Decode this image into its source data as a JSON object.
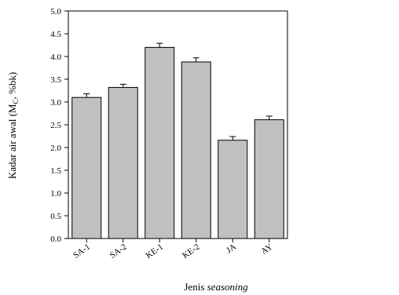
{
  "chart_data": {
    "type": "bar",
    "categories": [
      "SA-1",
      "SA-2",
      "KE-1",
      "KE-2",
      "JA",
      "AY"
    ],
    "values": [
      3.1,
      3.32,
      4.2,
      3.88,
      2.16,
      2.61
    ],
    "errors": [
      0.08,
      0.07,
      0.09,
      0.09,
      0.08,
      0.08
    ],
    "xlabel_main": "Jenis ",
    "xlabel_italic": "seasoning",
    "ylabel_main": "Kadar air awal (M",
    "ylabel_sub": "C",
    "ylabel_end": ", %bk)",
    "ylim": [
      0.0,
      5.0
    ],
    "yticks": [
      "0.0",
      "0.5",
      "1.0",
      "1.5",
      "2.0",
      "2.5",
      "3.0",
      "3.5",
      "4.0",
      "4.5",
      "5.0"
    ],
    "grid": false,
    "bar_color": "#c0c0c0"
  }
}
